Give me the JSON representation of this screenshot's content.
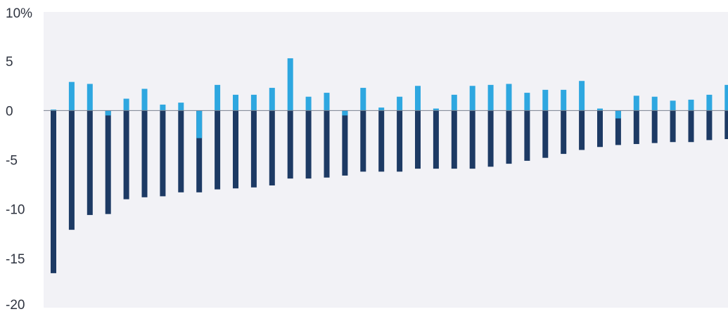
{
  "chart_data": {
    "type": "bar",
    "stacked": true,
    "ylabel": "",
    "xlabel": "",
    "ylim": [
      -20,
      10
    ],
    "yticks": [
      10,
      5,
      0,
      -5,
      -10,
      -15,
      -20
    ],
    "ytick_labels": [
      "10%",
      "5",
      "0",
      "-5",
      "-10",
      "-15",
      "-20"
    ],
    "grid": false,
    "legend": "none",
    "colors": {
      "plot_background": "#f2f2f6",
      "zero_line": "#7a8190",
      "series_dark": "#1d3a64",
      "series_light": "#2ea7e0",
      "tick_text": "#2f3440"
    },
    "series": [
      {
        "values": [
          -16.5,
          -12.1,
          -10.6,
          -10.5,
          -9.0,
          -8.8,
          -8.7,
          -8.3,
          -8.3,
          -8.0,
          -7.9,
          -7.8,
          -7.6,
          -6.9,
          -6.9,
          -6.8,
          -6.6,
          -6.2,
          -6.2,
          -6.2,
          -5.9,
          -5.9,
          -5.9,
          -5.9,
          -5.7,
          -5.4,
          -5.1,
          -4.8,
          -4.4,
          -4.0,
          -3.7,
          -3.5,
          -3.4,
          -3.3,
          -3.2,
          -3.2,
          -3.0,
          -2.9
        ]
      },
      {
        "values": [
          0.1,
          2.9,
          2.7,
          -0.5,
          1.2,
          2.2,
          0.6,
          0.8,
          -2.8,
          2.6,
          1.6,
          1.6,
          2.3,
          5.3,
          1.4,
          1.8,
          -0.5,
          2.3,
          0.3,
          1.4,
          2.5,
          0.2,
          1.6,
          2.5,
          2.6,
          2.7,
          1.8,
          2.1,
          2.1,
          3.0,
          0.2,
          -0.8,
          1.5,
          1.4,
          1.0,
          1.1,
          1.6,
          2.6
        ]
      }
    ]
  }
}
